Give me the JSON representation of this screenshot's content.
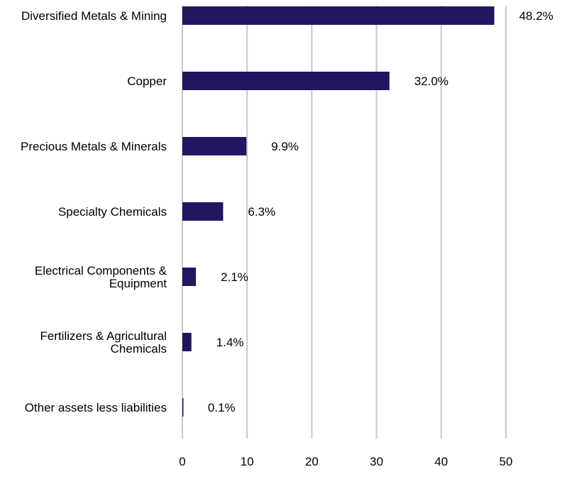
{
  "chart_data": {
    "type": "bar",
    "orientation": "horizontal",
    "categories": [
      [
        "Diversified Metals & Mining"
      ],
      [
        "Copper"
      ],
      [
        "Precious Metals & Minerals"
      ],
      [
        "Specialty Chemicals"
      ],
      [
        "Electrical Components &",
        "Equipment"
      ],
      [
        "Fertilizers & Agricultural",
        "Chemicals"
      ],
      [
        "Other assets less liabilities"
      ]
    ],
    "values": [
      48.2,
      32.0,
      9.9,
      6.3,
      2.1,
      1.4,
      0.1
    ],
    "data_labels": [
      "48.2%",
      "32.0%",
      "9.9%",
      "6.3%",
      "2.1%",
      "1.4%",
      "0.1%"
    ],
    "xlim": [
      0,
      50
    ],
    "xticks": [
      "0",
      "10",
      "20",
      "30",
      "40",
      "50"
    ],
    "grid": "vertical",
    "bar_color": "#201761",
    "grid_color": "#c8c8c8"
  }
}
